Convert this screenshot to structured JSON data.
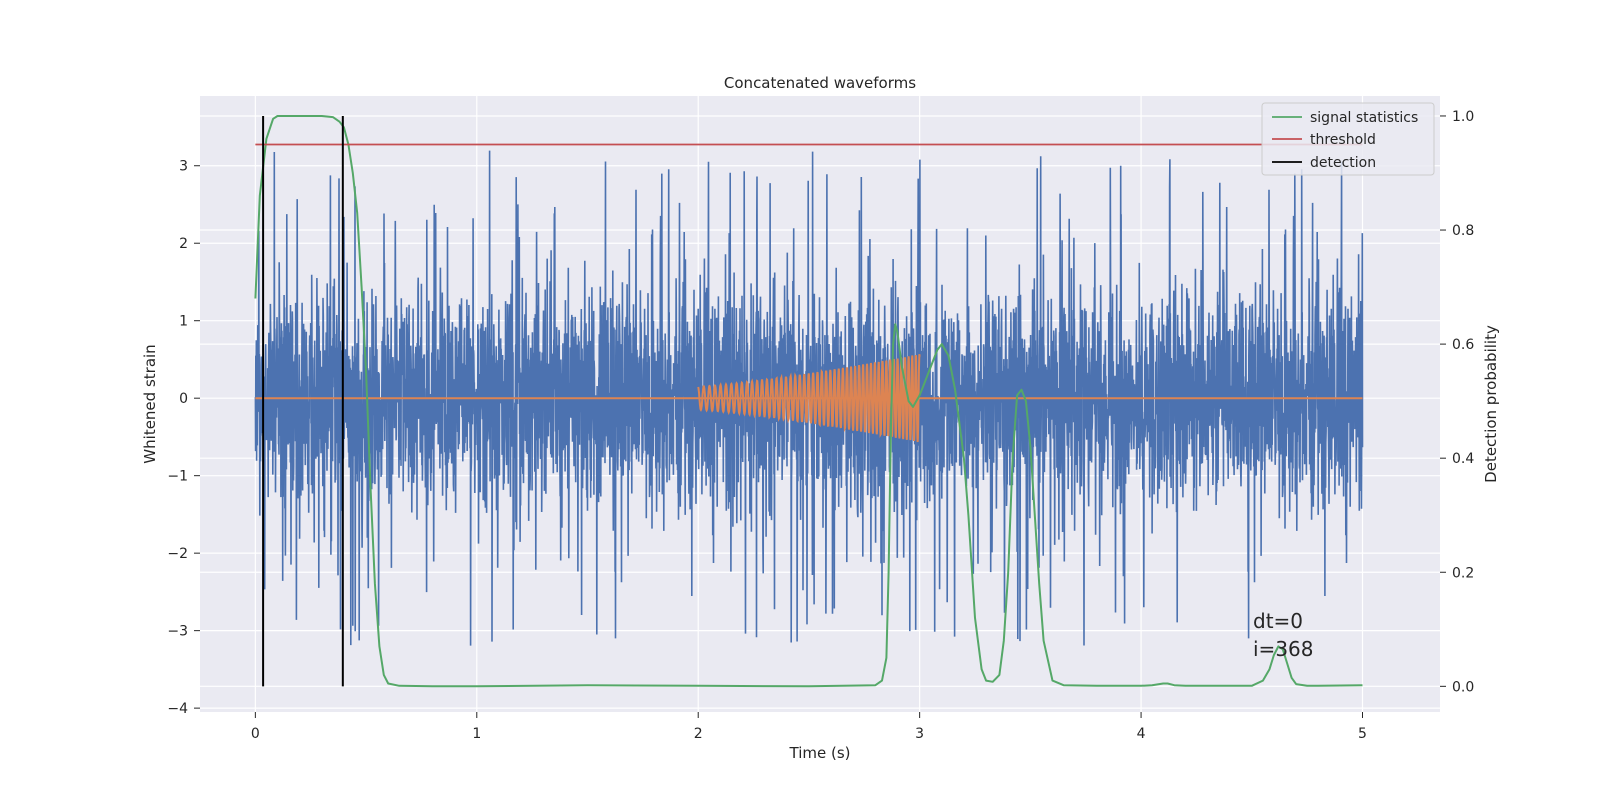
{
  "chart_data": {
    "type": "line",
    "title": "Concatenated waveforms",
    "xlabel": "Time (s)",
    "ylabel": "Whitened strain",
    "y2label": "Detection probability",
    "xlim": [
      -0.25,
      5.35
    ],
    "ylim": [
      -4.05,
      3.9
    ],
    "y2lim": [
      -0.045,
      1.035
    ],
    "xticks": [
      0,
      1,
      2,
      3,
      4,
      5
    ],
    "xtick_labels": [
      "0",
      "1",
      "2",
      "3",
      "4",
      "5"
    ],
    "yticks": [
      3,
      2,
      1,
      0,
      -1,
      -2,
      -3,
      -4
    ],
    "ytick_labels": [
      "3",
      "2",
      "1",
      "0",
      "−1",
      "−2",
      "−3",
      "−4"
    ],
    "y2ticks": [
      1.0,
      0.8,
      0.6,
      0.4,
      0.2,
      0.0
    ],
    "y2tick_labels": [
      "1.0",
      "0.8",
      "0.6",
      "0.4",
      "0.2",
      "0.0"
    ],
    "grid": true,
    "legend_position": "upper-right",
    "legend": [
      {
        "label": "signal statistics",
        "color": "#55a868"
      },
      {
        "label": "threshold",
        "color": "#c44e52"
      },
      {
        "label": "detection",
        "color": "#000000"
      }
    ],
    "colors": {
      "strain": "#4c72b0",
      "template": "#dd8452",
      "probability": "#55a868",
      "threshold": "#c44e52",
      "detection": "#000000",
      "background": "#eaeaf2",
      "grid": "#ffffff"
    },
    "series": [
      {
        "name": "strain",
        "axis": "left",
        "kind": "noise",
        "x_range": [
          0,
          5
        ],
        "mean": 0,
        "amplitude_envelope": 1.3,
        "peak_values": [
          3.5,
          -3.15,
          -3.55
        ]
      },
      {
        "name": "template",
        "axis": "left",
        "kind": "chirp",
        "zero_line_x": [
          0,
          5
        ],
        "chirp_x_range": [
          2.0,
          3.0
        ],
        "amplitude_start": 0.15,
        "amplitude_end": 0.57
      },
      {
        "name": "signal statistics",
        "axis": "right",
        "x": [
          0,
          0.02,
          0.05,
          0.08,
          0.1,
          0.15,
          0.2,
          0.3,
          0.35,
          0.38,
          0.4,
          0.42,
          0.44,
          0.46,
          0.48,
          0.5,
          0.52,
          0.54,
          0.56,
          0.58,
          0.6,
          0.65,
          0.8,
          1.0,
          1.5,
          2.0,
          2.5,
          2.8,
          2.83,
          2.85,
          2.86,
          2.87,
          2.88,
          2.89,
          2.9,
          2.92,
          2.95,
          2.97,
          3.0,
          3.02,
          3.05,
          3.08,
          3.1,
          3.13,
          3.16,
          3.2,
          3.22,
          3.25,
          3.28,
          3.3,
          3.33,
          3.36,
          3.38,
          3.4,
          3.42,
          3.44,
          3.46,
          3.48,
          3.5,
          3.52,
          3.54,
          3.56,
          3.6,
          3.65,
          3.8,
          4.0,
          4.05,
          4.1,
          4.12,
          4.15,
          4.2,
          4.5,
          4.55,
          4.58,
          4.6,
          4.62,
          4.64,
          4.66,
          4.68,
          4.7,
          4.75,
          4.8,
          5.0
        ],
        "values": [
          0.68,
          0.86,
          0.96,
          0.995,
          1.0,
          1.0,
          1.0,
          1.0,
          0.998,
          0.99,
          0.98,
          0.95,
          0.9,
          0.83,
          0.7,
          0.55,
          0.35,
          0.18,
          0.07,
          0.02,
          0.005,
          0.001,
          0.0,
          0.0,
          0.002,
          0.001,
          0.0,
          0.002,
          0.01,
          0.05,
          0.2,
          0.45,
          0.6,
          0.635,
          0.62,
          0.56,
          0.5,
          0.49,
          0.51,
          0.53,
          0.56,
          0.59,
          0.6,
          0.58,
          0.52,
          0.4,
          0.3,
          0.12,
          0.03,
          0.01,
          0.008,
          0.02,
          0.08,
          0.2,
          0.4,
          0.51,
          0.52,
          0.5,
          0.42,
          0.3,
          0.18,
          0.08,
          0.01,
          0.002,
          0.001,
          0.001,
          0.002,
          0.005,
          0.005,
          0.002,
          0.001,
          0.001,
          0.01,
          0.03,
          0.055,
          0.07,
          0.065,
          0.04,
          0.015,
          0.004,
          0.001,
          0.001,
          0.002
        ]
      },
      {
        "name": "threshold",
        "axis": "right",
        "x": [
          0,
          5
        ],
        "values": [
          0.95,
          0.95
        ]
      },
      {
        "name": "detection",
        "axis": "right",
        "kind": "vertical_lines",
        "x": [
          0.035,
          0.395
        ],
        "y_range": [
          0.0,
          1.0
        ]
      }
    ],
    "annotations": [
      {
        "text": "dt=0",
        "x": 4.5,
        "y": -2.9,
        "axis": "left"
      },
      {
        "text": "i=368",
        "x": 4.5,
        "y": -3.27,
        "axis": "left"
      }
    ]
  }
}
